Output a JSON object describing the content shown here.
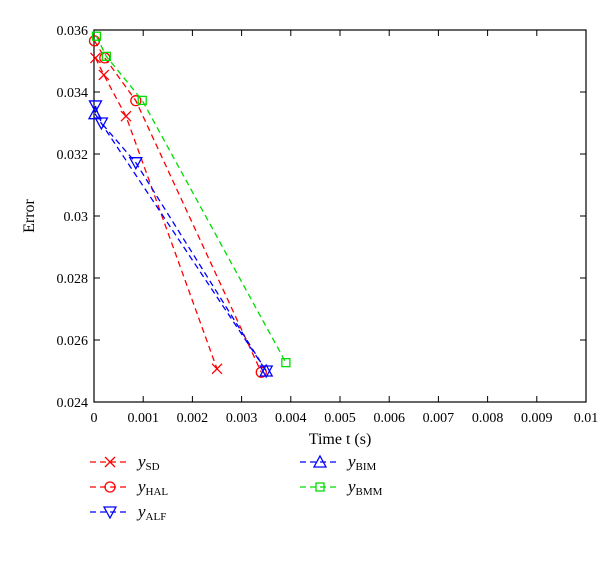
{
  "chart_data": {
    "type": "line",
    "title": "",
    "xlabel": "Time t (s)",
    "ylabel": "Error",
    "xlim": [
      0,
      0.01
    ],
    "ylim": [
      0.024,
      0.036
    ],
    "xticks": [
      "0",
      "0.001",
      "0.002",
      "0.003",
      "0.004",
      "0.005",
      "0.006",
      "0.007",
      "0.008",
      "0.009",
      "0.01"
    ],
    "yticks": [
      "0.024",
      "0.026",
      "0.028",
      "0.03",
      "0.032",
      "0.034",
      "0.036"
    ],
    "grid": false,
    "legend_position": "below",
    "series": [
      {
        "name": "y",
        "sub": "SD",
        "color": "#ff0000",
        "marker": "x",
        "x": [
          3e-05,
          0.0002,
          0.00065,
          0.0025
        ],
        "y": [
          0.0351,
          0.03455,
          0.03322,
          0.02507
        ]
      },
      {
        "name": "y",
        "sub": "HAL",
        "color": "#ff0000",
        "marker": "o",
        "x": [
          1e-05,
          0.00022,
          0.00085,
          0.0034
        ],
        "y": [
          0.03565,
          0.0351,
          0.03372,
          0.02496
        ]
      },
      {
        "name": "y",
        "sub": "ALF",
        "color": "#0000ff",
        "marker": "v",
        "x": [
          3e-05,
          0.00015,
          0.00085,
          0.0035
        ],
        "y": [
          0.03355,
          0.033,
          0.03172,
          0.025
        ]
      },
      {
        "name": "y",
        "sub": "BIM",
        "color": "#0000ff",
        "marker": "^",
        "x": [
          2e-05,
          0.0035
        ],
        "y": [
          0.0333,
          0.025
        ]
      },
      {
        "name": "y",
        "sub": "BMM",
        "color": "#00dd00",
        "marker": "s",
        "x": [
          5e-05,
          0.00025,
          0.00098,
          0.0039
        ],
        "y": [
          0.0358,
          0.03515,
          0.03373,
          0.02527
        ]
      }
    ]
  }
}
